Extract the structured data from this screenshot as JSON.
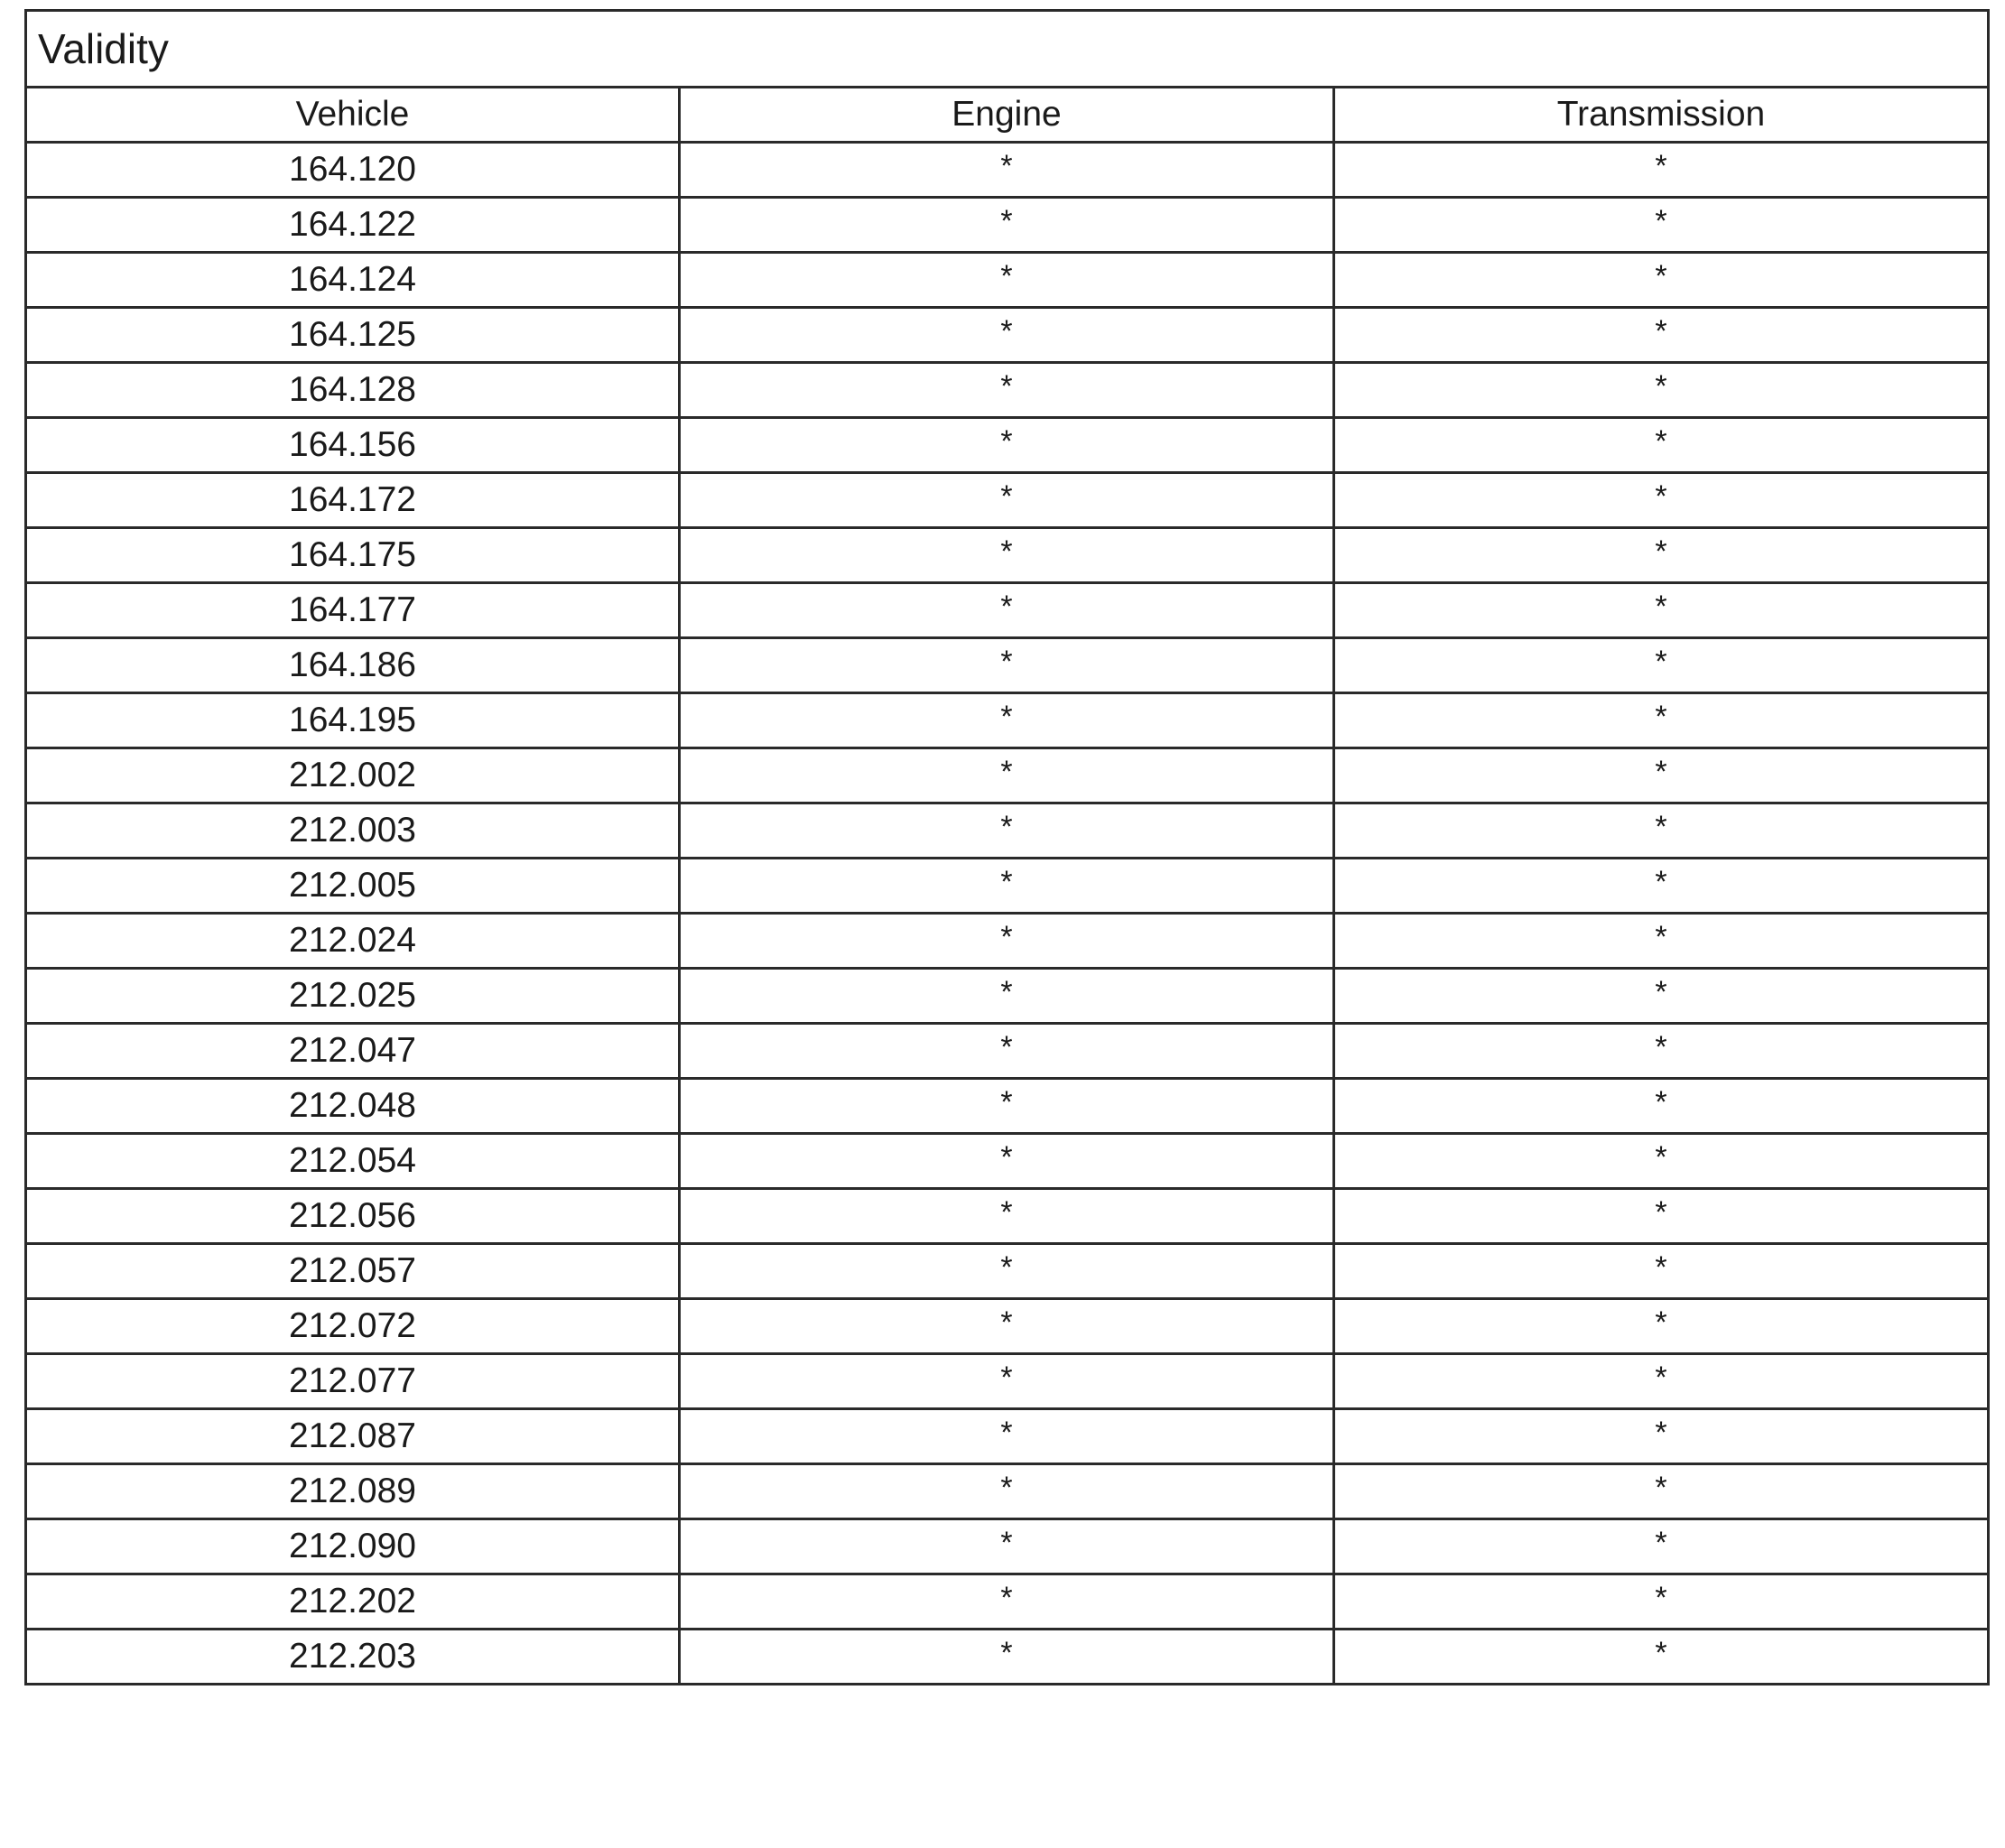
{
  "table": {
    "title": "Validity",
    "columns": [
      "Vehicle",
      "Engine",
      "Transmission"
    ],
    "rows": [
      [
        "164.120",
        "*",
        "*"
      ],
      [
        "164.122",
        "*",
        "*"
      ],
      [
        "164.124",
        "*",
        "*"
      ],
      [
        "164.125",
        "*",
        "*"
      ],
      [
        "164.128",
        "*",
        "*"
      ],
      [
        "164.156",
        "*",
        "*"
      ],
      [
        "164.172",
        "*",
        "*"
      ],
      [
        "164.175",
        "*",
        "*"
      ],
      [
        "164.177",
        "*",
        "*"
      ],
      [
        "164.186",
        "*",
        "*"
      ],
      [
        "164.195",
        "*",
        "*"
      ],
      [
        "212.002",
        "*",
        "*"
      ],
      [
        "212.003",
        "*",
        "*"
      ],
      [
        "212.005",
        "*",
        "*"
      ],
      [
        "212.024",
        "*",
        "*"
      ],
      [
        "212.025",
        "*",
        "*"
      ],
      [
        "212.047",
        "*",
        "*"
      ],
      [
        "212.048",
        "*",
        "*"
      ],
      [
        "212.054",
        "*",
        "*"
      ],
      [
        "212.056",
        "*",
        "*"
      ],
      [
        "212.057",
        "*",
        "*"
      ],
      [
        "212.072",
        "*",
        "*"
      ],
      [
        "212.077",
        "*",
        "*"
      ],
      [
        "212.087",
        "*",
        "*"
      ],
      [
        "212.089",
        "*",
        "*"
      ],
      [
        "212.090",
        "*",
        "*"
      ],
      [
        "212.202",
        "*",
        "*"
      ],
      [
        "212.203",
        "*",
        "*"
      ]
    ]
  }
}
